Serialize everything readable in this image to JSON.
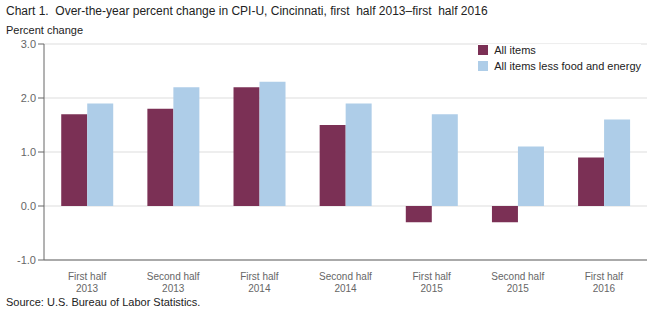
{
  "chart_data": {
    "type": "bar",
    "title": "Chart 1.  Over-the-year percent change in CPI-U, Cincinnati, first  half 2013–first  half 2016",
    "y_label": "Percent change",
    "annotations": [
      "Source: U.S. Bureau of Labor Statistics."
    ],
    "categories": [
      "First half 2013",
      "Second half 2013",
      "First half 2014",
      "Second half 2014",
      "First half 2015",
      "Second half 2015",
      "First half 2016"
    ],
    "series": [
      {
        "name": "All items",
        "color": "#7B3055",
        "values": [
          1.7,
          1.8,
          2.2,
          1.5,
          -0.3,
          -0.3,
          0.9
        ]
      },
      {
        "name": "All items less food and energy",
        "color": "#aecde8",
        "values": [
          1.9,
          2.2,
          2.3,
          1.9,
          1.7,
          1.1,
          1.6
        ]
      }
    ],
    "ylim": [
      -1.0,
      3.0
    ],
    "yticks": [
      {
        "value": -1.0,
        "label": "-1.0"
      },
      {
        "value": 0.0,
        "label": "0.0"
      },
      {
        "value": 1.0,
        "label": "1.0"
      },
      {
        "value": 2.0,
        "label": "2.0"
      },
      {
        "value": 3.0,
        "label": "3.0"
      }
    ],
    "grid": true,
    "legend": "upper right"
  }
}
